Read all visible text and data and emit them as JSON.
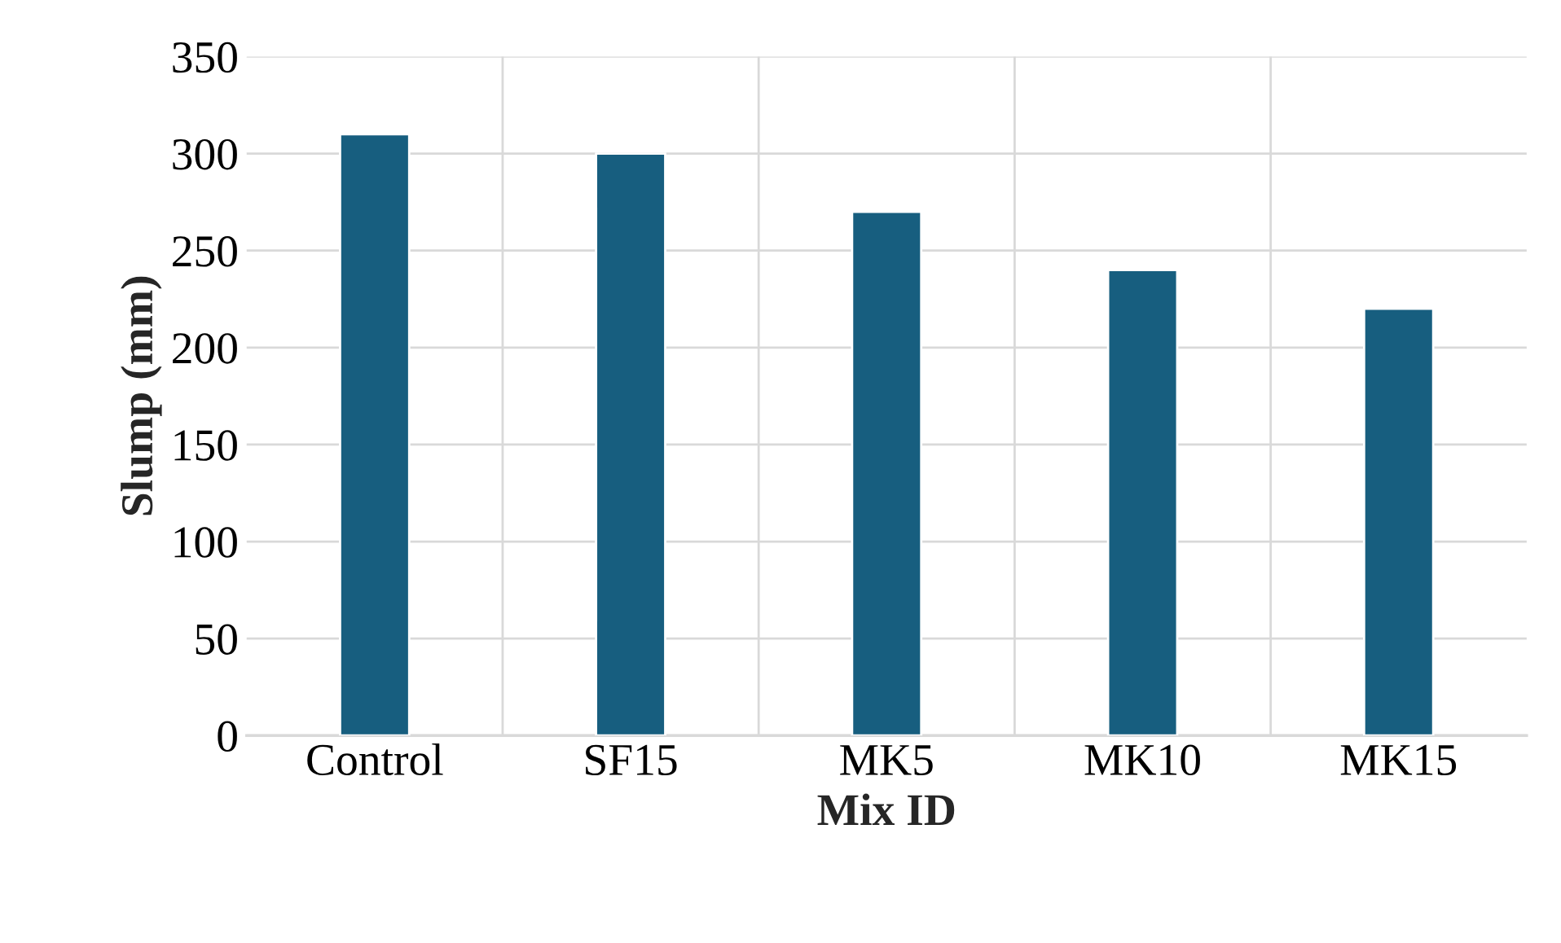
{
  "chart_data": {
    "type": "bar",
    "xlabel": "Mix ID",
    "ylabel": "Slump (mm)",
    "categories": [
      "Control",
      "SF15",
      "MK5",
      "MK10",
      "MK15"
    ],
    "values": [
      310,
      300,
      270,
      240,
      220
    ],
    "color": "#175e7f",
    "ylim": [
      0,
      350
    ],
    "yticks": [
      0,
      50,
      100,
      150,
      200,
      250,
      300,
      350
    ],
    "grid": true
  }
}
